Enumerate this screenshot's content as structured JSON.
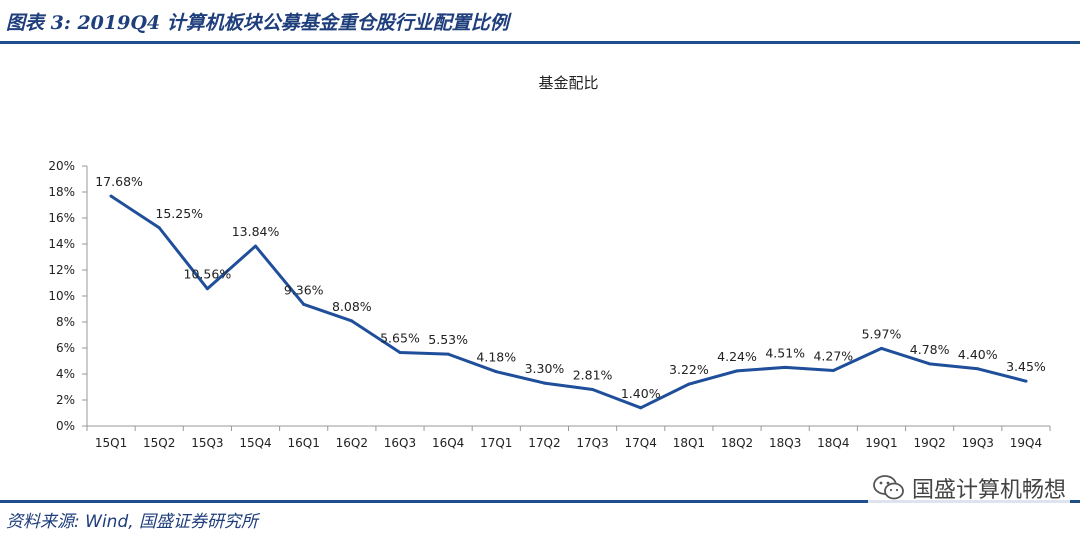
{
  "header": {
    "title": "图表 3:  2019Q4 计算机板块公募基金重仓股行业配置比例"
  },
  "footer": {
    "source": "资料来源:  Wind,  国盛证券研究所"
  },
  "watermark": {
    "text": "国盛计算机畅想",
    "icon": "wechat-icon"
  },
  "colors": {
    "brand": "#1f4e8c",
    "line": "#1f4e9a"
  },
  "chart_data": {
    "type": "line",
    "title": "基金配比",
    "categories": [
      "15Q1",
      "15Q2",
      "15Q3",
      "15Q4",
      "16Q1",
      "16Q2",
      "16Q3",
      "16Q4",
      "17Q1",
      "17Q2",
      "17Q3",
      "17Q4",
      "18Q1",
      "18Q2",
      "18Q3",
      "18Q4",
      "19Q1",
      "19Q2",
      "19Q3",
      "19Q4"
    ],
    "series": [
      {
        "values": [
          17.68,
          15.25,
          10.56,
          13.84,
          9.36,
          8.08,
          5.65,
          5.53,
          4.18,
          3.3,
          2.81,
          1.4,
          3.22,
          4.24,
          4.51,
          4.27,
          5.97,
          4.78,
          4.4,
          3.45
        ]
      }
    ],
    "data_labels": [
      "17.68%",
      "15.25%",
      "10.56%",
      "13.84%",
      "9.36%",
      "8.08%",
      "5.65%",
      "5.53%",
      "4.18%",
      "3.30%",
      "2.81%",
      "1.40%",
      "3.22%",
      "4.24%",
      "4.51%",
      "4.27%",
      "5.97%",
      "4.78%",
      "4.40%",
      "3.45%"
    ],
    "yticks": [
      "0%",
      "2%",
      "4%",
      "6%",
      "8%",
      "10%",
      "12%",
      "14%",
      "16%",
      "18%",
      "20%"
    ],
    "ylim": [
      0,
      20
    ],
    "grid": false,
    "legend": "none"
  }
}
